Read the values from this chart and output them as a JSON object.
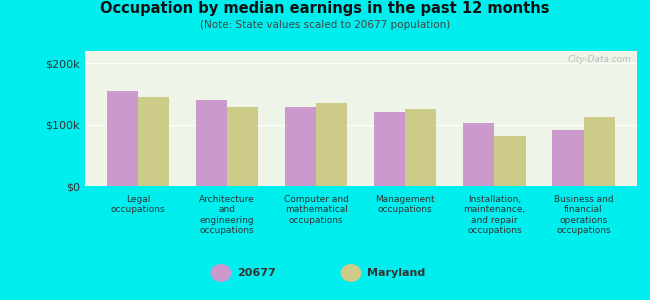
{
  "title": "Occupation by median earnings in the past 12 months",
  "subtitle": "(Note: State values scaled to 20677 population)",
  "categories": [
    "Legal\noccupations",
    "Architecture\nand\nengineering\noccupations",
    "Computer and\nmathematical\noccupations",
    "Management\noccupations",
    "Installation,\nmaintenance,\nand repair\noccupations",
    "Business and\nfinancial\noperations\noccupations"
  ],
  "values_20677": [
    155000,
    140000,
    128000,
    120000,
    102000,
    92000
  ],
  "values_maryland": [
    145000,
    128000,
    135000,
    125000,
    82000,
    112000
  ],
  "color_20677": "#cc99cc",
  "color_maryland": "#cccc88",
  "background_outer": "#00eeee",
  "background_plot": "#eef5e8",
  "ylim": [
    0,
    220000
  ],
  "yticks": [
    0,
    100000,
    200000
  ],
  "yticklabels": [
    "$0",
    "$100k",
    "$200k"
  ],
  "legend_label_1": "20677",
  "legend_label_2": "Maryland",
  "bar_width": 0.35,
  "watermark": "City-Data.com"
}
